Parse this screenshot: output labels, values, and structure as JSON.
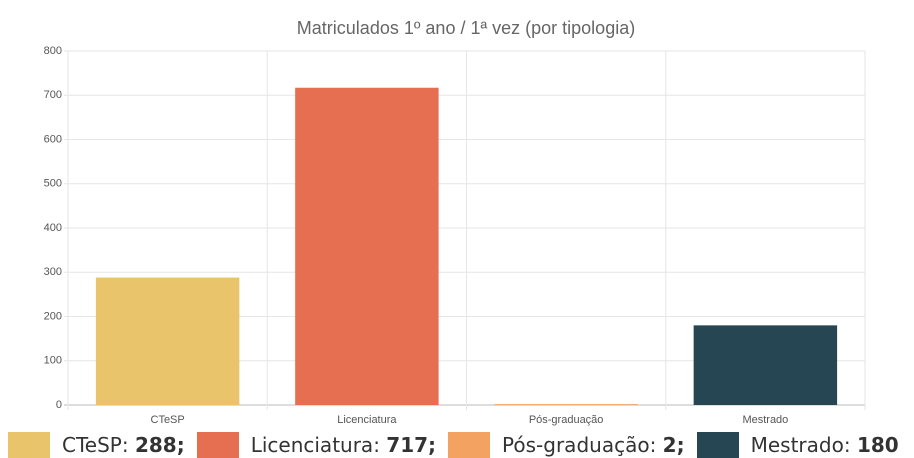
{
  "chart_data": {
    "type": "bar",
    "title": "Matriculados 1º ano / 1ª vez (por tipologia)",
    "categories": [
      "CTeSP",
      "Licenciatura",
      "Pós-graduação",
      "Mestrado"
    ],
    "values": [
      288,
      717,
      2,
      180
    ],
    "value_labels": [
      "288;",
      "717;",
      "2;",
      "180"
    ],
    "colors": [
      "#e9c46a",
      "#e76f51",
      "#f4a261",
      "#264653"
    ],
    "legend_separator": ":",
    "ylim": [
      0,
      800
    ],
    "yticks": [
      0,
      100,
      200,
      300,
      400,
      500,
      600,
      700,
      800
    ],
    "grid": true,
    "legend": "bottom"
  }
}
